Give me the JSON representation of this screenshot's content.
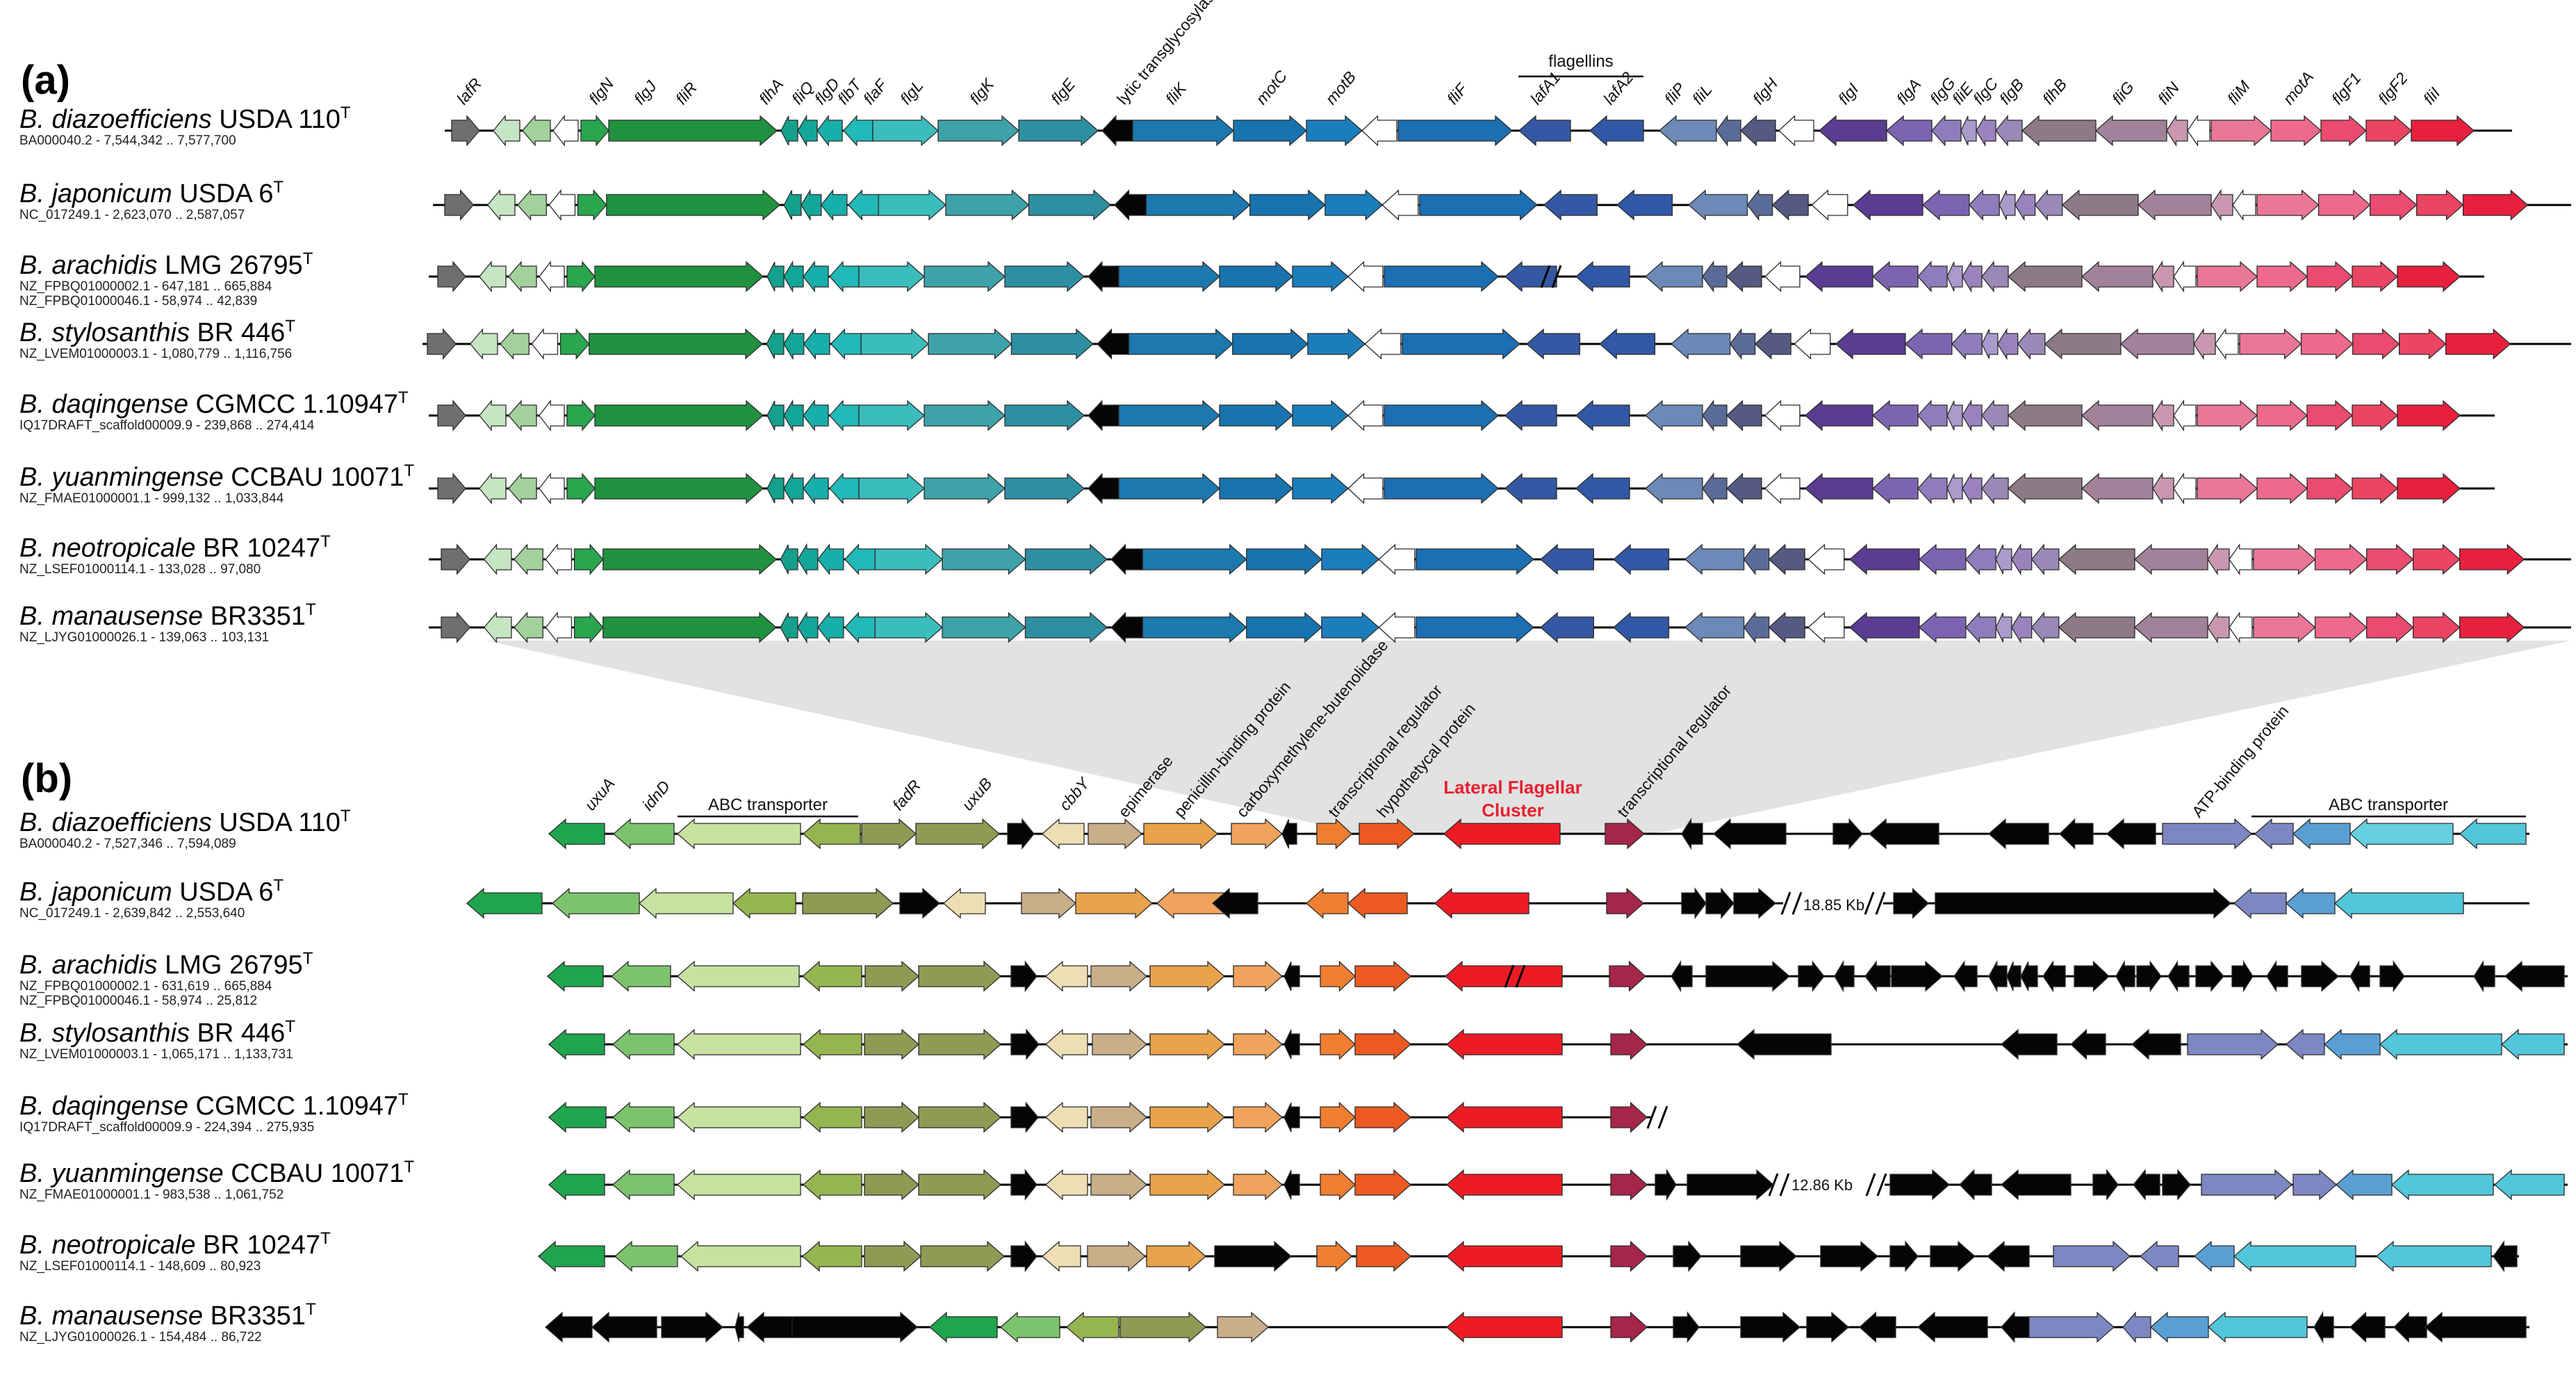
{
  "panel_a": {
    "label": "(a)",
    "group_label": "flagellins",
    "gene_labels": [
      "lafR",
      "flgN",
      "flgJ",
      "fliR",
      "flhA",
      "fliQ",
      "flgD",
      "flbT",
      "flaF",
      "flgL",
      "flgK",
      "flgE",
      "lytic transglycosylase",
      "fliK",
      "motC",
      "motB",
      "fliF",
      "lafA1",
      "lafA2",
      "fliP",
      "fliL",
      "flgH",
      "flgI",
      "flgA",
      "flgG",
      "fliE",
      "flgC",
      "flgB",
      "flhB",
      "fliG",
      "fliN",
      "fliM",
      "motA",
      "flgF1",
      "flgF2",
      "fliI"
    ],
    "species": [
      {
        "genus": "B. diazoefficiens",
        "strain": "USDA 110",
        "sup": "T",
        "acc": [
          "BA000040.2 - 7,544,342 .. 7,577,700"
        ]
      },
      {
        "genus": "B. japonicum",
        "strain": "USDA 6",
        "sup": "T",
        "acc": [
          "NC_017249.1 - 2,623,070 .. 2,587,057"
        ]
      },
      {
        "genus": "B. arachidis",
        "strain": "LMG 26795",
        "sup": "T",
        "acc": [
          "NZ_FPBQ01000002.1 - 647,181 .. 665,884",
          "NZ_FPBQ01000046.1 - 58,974 .. 42,839"
        ]
      },
      {
        "genus": "B. stylosanthis",
        "strain": "BR 446",
        "sup": "T",
        "acc": [
          "NZ_LVEM01000003.1 - 1,080,779 .. 1,116,756"
        ]
      },
      {
        "genus": "B. daqingense",
        "strain": "CGMCC 1.10947",
        "sup": "T",
        "acc": [
          "IQ17DRAFT_scaffold00009.9 - 239,868 .. 274,414"
        ]
      },
      {
        "genus": "B. yuanmingense",
        "strain": "CCBAU 10071",
        "sup": "T",
        "acc": [
          "NZ_FMAE01000001.1 - 999,132 .. 1,033,844"
        ]
      },
      {
        "genus": "B. neotropicale",
        "strain": "BR 10247",
        "sup": "T",
        "acc": [
          "NZ_LSEF01000114.1 - 133,028 .. 97,080"
        ]
      },
      {
        "genus": "B. manausense",
        "strain": "BR3351",
        "sup": "T",
        "acc": [
          "NZ_LJYG01000026.1 - 139,063 .. 103,131"
        ]
      }
    ]
  },
  "panel_b": {
    "label": "(b)",
    "group_labels": [
      "ABC transporter",
      "ABC transporter"
    ],
    "gene_labels": [
      "uxuA",
      "idnD",
      "fadR",
      "uxuB",
      "cbbY"
    ],
    "protein_labels": [
      "epimerase",
      "penicillin-binding protein",
      "carboxymethylene-butenolidase",
      "transcriptional regulator",
      "hypothetycal protein",
      "transcriptional regulator",
      "ATP-binding protein"
    ],
    "lfc_label": [
      "Lateral Flagellar",
      "Cluster"
    ],
    "gap_labels": [
      "18.85 Kb",
      "12.86 Kb"
    ],
    "species": [
      {
        "genus": "B. diazoefficiens",
        "strain": "USDA 110",
        "sup": "T",
        "acc": [
          "BA000040.2 - 7,527,346 .. 7,594,089"
        ]
      },
      {
        "genus": "B. japonicum",
        "strain": "USDA 6",
        "sup": "T",
        "acc": [
          "NC_017249.1 - 2,639,842 .. 2,553,640"
        ]
      },
      {
        "genus": "B. arachidis",
        "strain": "LMG 26795",
        "sup": "T",
        "acc": [
          "NZ_FPBQ01000002.1 - 631,619 .. 665,884",
          "NZ_FPBQ01000046.1 - 58,974 .. 25,812"
        ]
      },
      {
        "genus": "B. stylosanthis",
        "strain": "BR 446",
        "sup": "T",
        "acc": [
          "NZ_LVEM01000003.1 - 1,065,171 .. 1,133,731"
        ]
      },
      {
        "genus": "B. daqingense",
        "strain": "CGMCC 1.10947",
        "sup": "T",
        "acc": [
          "IQ17DRAFT_scaffold00009.9 - 224,394 .. 275,935"
        ]
      },
      {
        "genus": "B. yuanmingense",
        "strain": "CCBAU 10071",
        "sup": "T",
        "acc": [
          "NZ_FMAE01000001.1 - 983,538 .. 1,061,752"
        ]
      },
      {
        "genus": "B. neotropicale",
        "strain": "BR 10247",
        "sup": "T",
        "acc": [
          "NZ_LSEF01000114.1 - 148,609 .. 80,923"
        ]
      },
      {
        "genus": "B. manausense",
        "strain": "BR3351",
        "sup": "T",
        "acc": [
          "NZ_LJYG01000026.1 - 154,484 .. 86,722"
        ]
      }
    ]
  }
}
